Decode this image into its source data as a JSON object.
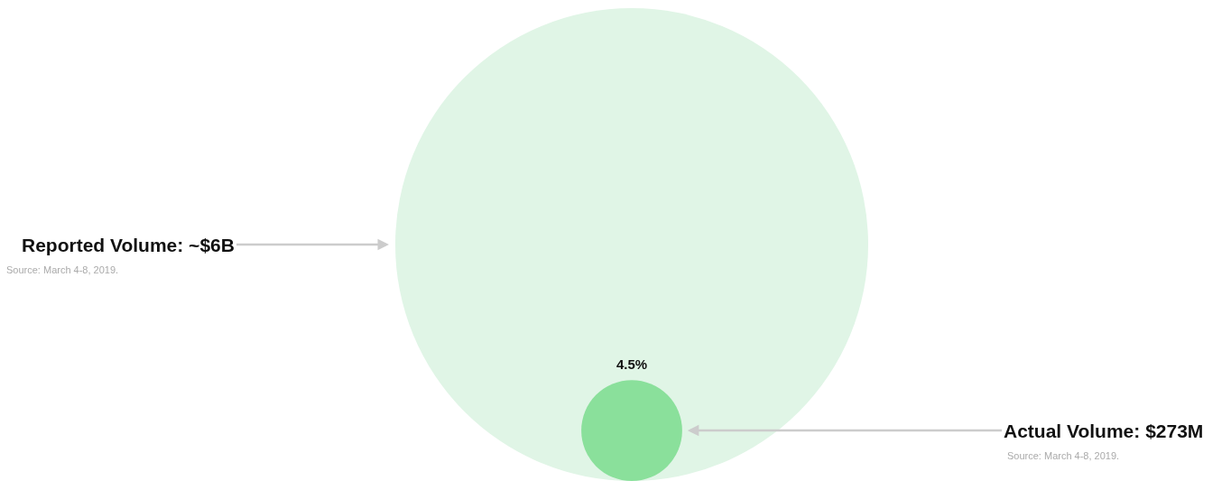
{
  "chart_data": {
    "type": "other",
    "values": [
      6000000000,
      273000000
    ],
    "value_labels": [
      "Reported Volume: ~$6B",
      "Actual Volume: $273M"
    ],
    "colors": [
      "#e0f5e6",
      "#8ae09b"
    ],
    "annotations": [
      "Source: March 4-8, 2019.",
      "Source: March 4-8, 2019.",
      "4.5%"
    ]
  }
}
